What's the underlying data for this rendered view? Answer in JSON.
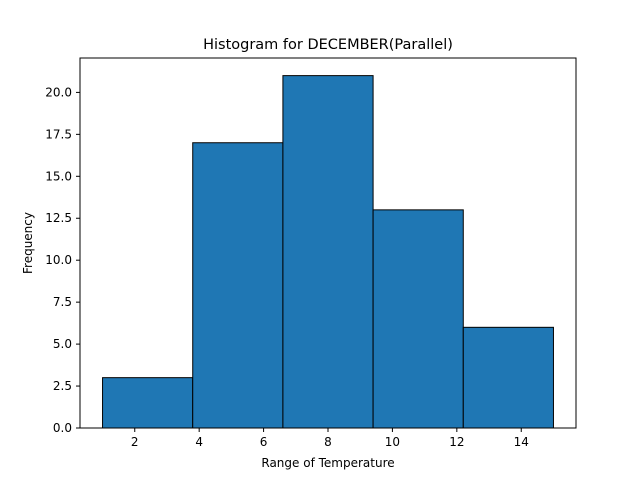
{
  "chart_data": {
    "type": "bar",
    "title": "Histogram for DECEMBER(Parallel)",
    "xlabel": "Range of Temperature",
    "ylabel": "Frequency",
    "bins": [
      {
        "start": 1.0,
        "end": 3.8,
        "value": 3
      },
      {
        "start": 3.8,
        "end": 6.6,
        "value": 17
      },
      {
        "start": 6.6,
        "end": 9.4,
        "value": 21
      },
      {
        "start": 9.4,
        "end": 12.2,
        "value": 13
      },
      {
        "start": 12.2,
        "end": 15.0,
        "value": 6
      }
    ],
    "xlim": [
      0.3,
      15.7
    ],
    "ylim": [
      0,
      22.05
    ],
    "x_ticks": [
      2,
      4,
      6,
      8,
      10,
      12,
      14
    ],
    "x_tick_labels": [
      "2",
      "4",
      "6",
      "8",
      "10",
      "12",
      "14"
    ],
    "y_ticks": [
      0,
      2.5,
      5,
      7.5,
      10,
      12.5,
      15,
      17.5,
      20
    ],
    "y_tick_labels": [
      "0.0",
      "2.5",
      "5.0",
      "7.5",
      "10.0",
      "12.5",
      "15.0",
      "17.5",
      "20.0"
    ],
    "grid": false,
    "bar_color": "#1f77b4",
    "edge_color": "#000000"
  }
}
